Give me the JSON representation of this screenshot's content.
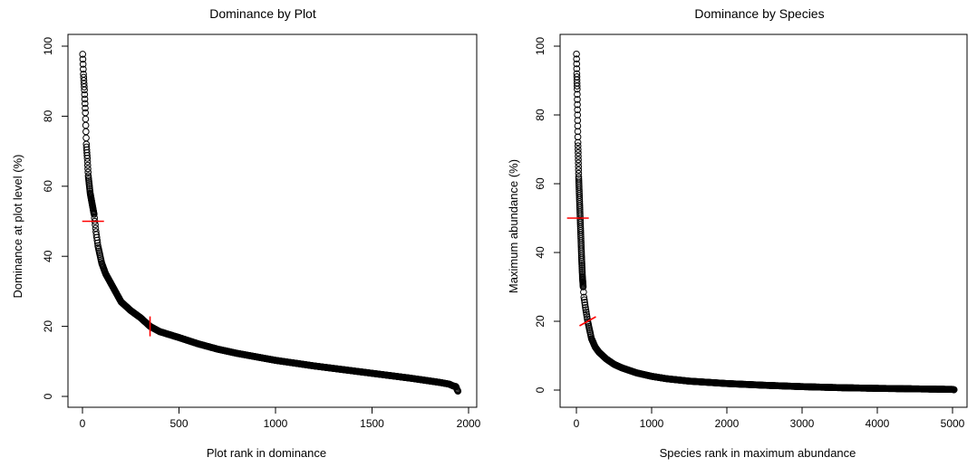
{
  "chart_data": [
    {
      "type": "scatter",
      "title": "Dominance by Plot",
      "xlabel": "Plot rank in dominance",
      "ylabel": "Dominance at plot level (%)",
      "xlim": [
        0,
        2000
      ],
      "ylim": [
        0,
        100
      ],
      "xticks": [
        "0",
        "500",
        "1000",
        "1500",
        "2000"
      ],
      "yticks": [
        "0",
        "20",
        "40",
        "60",
        "80",
        "100"
      ],
      "grid": false,
      "marker": "open-circle",
      "marker_color": "#000000",
      "curve_x": [
        1,
        5,
        10,
        15,
        20,
        25,
        30,
        40,
        50,
        60,
        70,
        80,
        100,
        120,
        150,
        200,
        250,
        300,
        350,
        400,
        500,
        600,
        700,
        800,
        900,
        1000,
        1100,
        1200,
        1300,
        1400,
        1500,
        1600,
        1700,
        1800,
        1850,
        1900,
        1920,
        1935,
        1940,
        1945
      ],
      "curve_y": [
        97.7,
        92,
        87.5,
        81,
        72,
        68,
        63,
        58,
        55,
        52,
        47,
        43,
        38,
        35,
        32,
        27,
        24.5,
        22.5,
        20,
        18.5,
        16.8,
        15,
        13.5,
        12.3,
        11.3,
        10.3,
        9.5,
        8.7,
        8,
        7.3,
        6.6,
        5.9,
        5.2,
        4.4,
        4,
        3.5,
        3,
        2.8,
        2,
        1.5
      ],
      "markers": [
        {
          "x": 55,
          "y": 50,
          "orientation": "horizontal",
          "color": "#ff0000"
        },
        {
          "x": 350,
          "y": 20,
          "orientation": "vertical",
          "color": "#ff0000"
        }
      ]
    },
    {
      "type": "scatter",
      "title": "Dominance by Species",
      "xlabel": "Species rank in maximum abundance",
      "ylabel": "Maximum abundance (%)",
      "xlim": [
        0,
        5000
      ],
      "ylim": [
        0,
        100
      ],
      "xticks": [
        "0",
        "1000",
        "2000",
        "3000",
        "4000",
        "5000"
      ],
      "yticks": [
        "0",
        "20",
        "40",
        "60",
        "80",
        "100"
      ],
      "grid": false,
      "marker": "open-circle",
      "marker_color": "#000000",
      "curve_x": [
        1,
        5,
        10,
        15,
        20,
        25,
        30,
        40,
        50,
        60,
        70,
        80,
        100,
        120,
        150,
        200,
        250,
        300,
        400,
        500,
        600,
        800,
        1000,
        1200,
        1500,
        2000,
        2500,
        3000,
        3500,
        4000,
        4500,
        5000,
        5020
      ],
      "curve_y": [
        97.7,
        92,
        87.5,
        80,
        72,
        67,
        62,
        56,
        50,
        44,
        38,
        33,
        27,
        24,
        20,
        15,
        12.5,
        11,
        9,
        7.5,
        6.5,
        5,
        4,
        3.3,
        2.6,
        1.9,
        1.4,
        1,
        0.7,
        0.5,
        0.35,
        0.2,
        0.1
      ],
      "markers": [
        {
          "x": 20,
          "y": 50,
          "orientation": "horizontal",
          "color": "#ff0000"
        },
        {
          "x": 150,
          "y": 20,
          "orientation": "diagonal",
          "color": "#ff0000"
        }
      ]
    }
  ]
}
